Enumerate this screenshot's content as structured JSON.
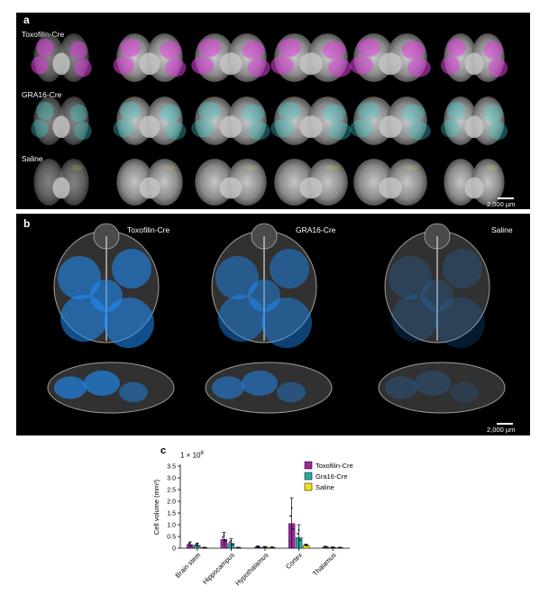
{
  "panel_a": {
    "label": "a",
    "rows": [
      {
        "name": "Toxofilin-Cre",
        "color": "#e040e0"
      },
      {
        "name": "GRA16-Cre",
        "color": "#40d8d8"
      },
      {
        "name": "Saline",
        "color": "#f0e040"
      }
    ],
    "scale": "2,000 µm"
  },
  "panel_b": {
    "label": "b",
    "columns": [
      "Toxofilin-Cre",
      "GRA16-Cre",
      "Saline"
    ],
    "signal_color": "#1e90ff",
    "scale": "2,000 µm"
  },
  "panel_c": {
    "label": "c",
    "multiplier": "1 × 10",
    "exponent": "6"
  },
  "chart_data": {
    "type": "bar",
    "categories": [
      "Brain stem",
      "Hippocampus",
      "Hypothalamus",
      "Cortex",
      "Thalamus"
    ],
    "ylabel": "Cell volume (mm³)",
    "ylim": [
      0,
      3.5
    ],
    "yticks": [
      "0",
      "0.5",
      "1.0",
      "1.5",
      "2.0",
      "2.5",
      "3.0",
      "3.5"
    ],
    "series": [
      {
        "name": "Toxofilin-Cre",
        "color": "#9b2a9e",
        "values": [
          0.15,
          0.38,
          0.05,
          1.05,
          0.05
        ],
        "errors": [
          0.12,
          0.3,
          0.04,
          1.1,
          0.03
        ]
      },
      {
        "name": "Gra16-Cre",
        "color": "#2aa7a1",
        "values": [
          0.12,
          0.2,
          0.04,
          0.45,
          0.03
        ],
        "errors": [
          0.1,
          0.2,
          0.03,
          0.55,
          0.02
        ]
      },
      {
        "name": "Saline",
        "color": "#f2e317",
        "values": [
          0.02,
          0.02,
          0.03,
          0.12,
          0.02
        ],
        "errors": [
          0.01,
          0.01,
          0.02,
          0.05,
          0.01
        ]
      }
    ]
  }
}
